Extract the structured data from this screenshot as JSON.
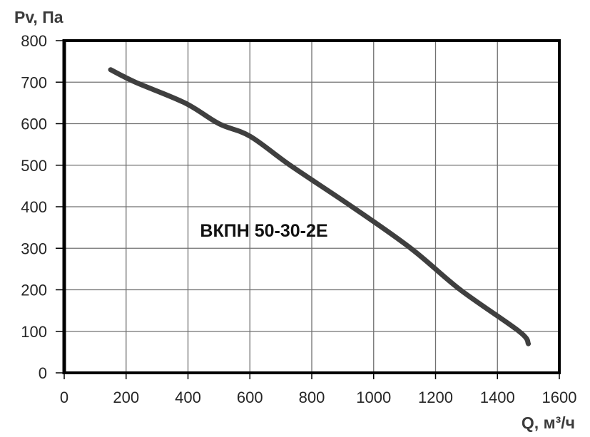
{
  "chart_data": {
    "type": "line",
    "title": "",
    "series_label": "ВКПН 50-30-2Е",
    "xlabel": "Q, м³/ч",
    "ylabel": "Pv, Па",
    "xlim": [
      0,
      1600
    ],
    "ylim": [
      0,
      800
    ],
    "x_ticks": [
      0,
      200,
      400,
      600,
      800,
      1000,
      1200,
      1400,
      1600
    ],
    "y_ticks": [
      0,
      100,
      200,
      300,
      400,
      500,
      600,
      700,
      800
    ],
    "grid": true,
    "legend_position": "none",
    "series": [
      {
        "name": "ВКПН 50-30-2Е",
        "x": [
          150,
          230,
          390,
          500,
          600,
          730,
          930,
          1120,
          1280,
          1470,
          1500
        ],
        "y": [
          730,
          700,
          650,
          600,
          570,
          500,
          400,
          300,
          200,
          100,
          70
        ]
      }
    ],
    "annotation": {
      "text": "ВКПН 50-30-2Е",
      "q": 650,
      "pv": 340
    },
    "colors": {
      "background": "#ffffff",
      "frame": "#000000",
      "grid": "#707070",
      "tick": "#000000",
      "tick_label": "#262626",
      "axis_title": "#3b3b3b",
      "curve": "#3f3f3f"
    }
  }
}
